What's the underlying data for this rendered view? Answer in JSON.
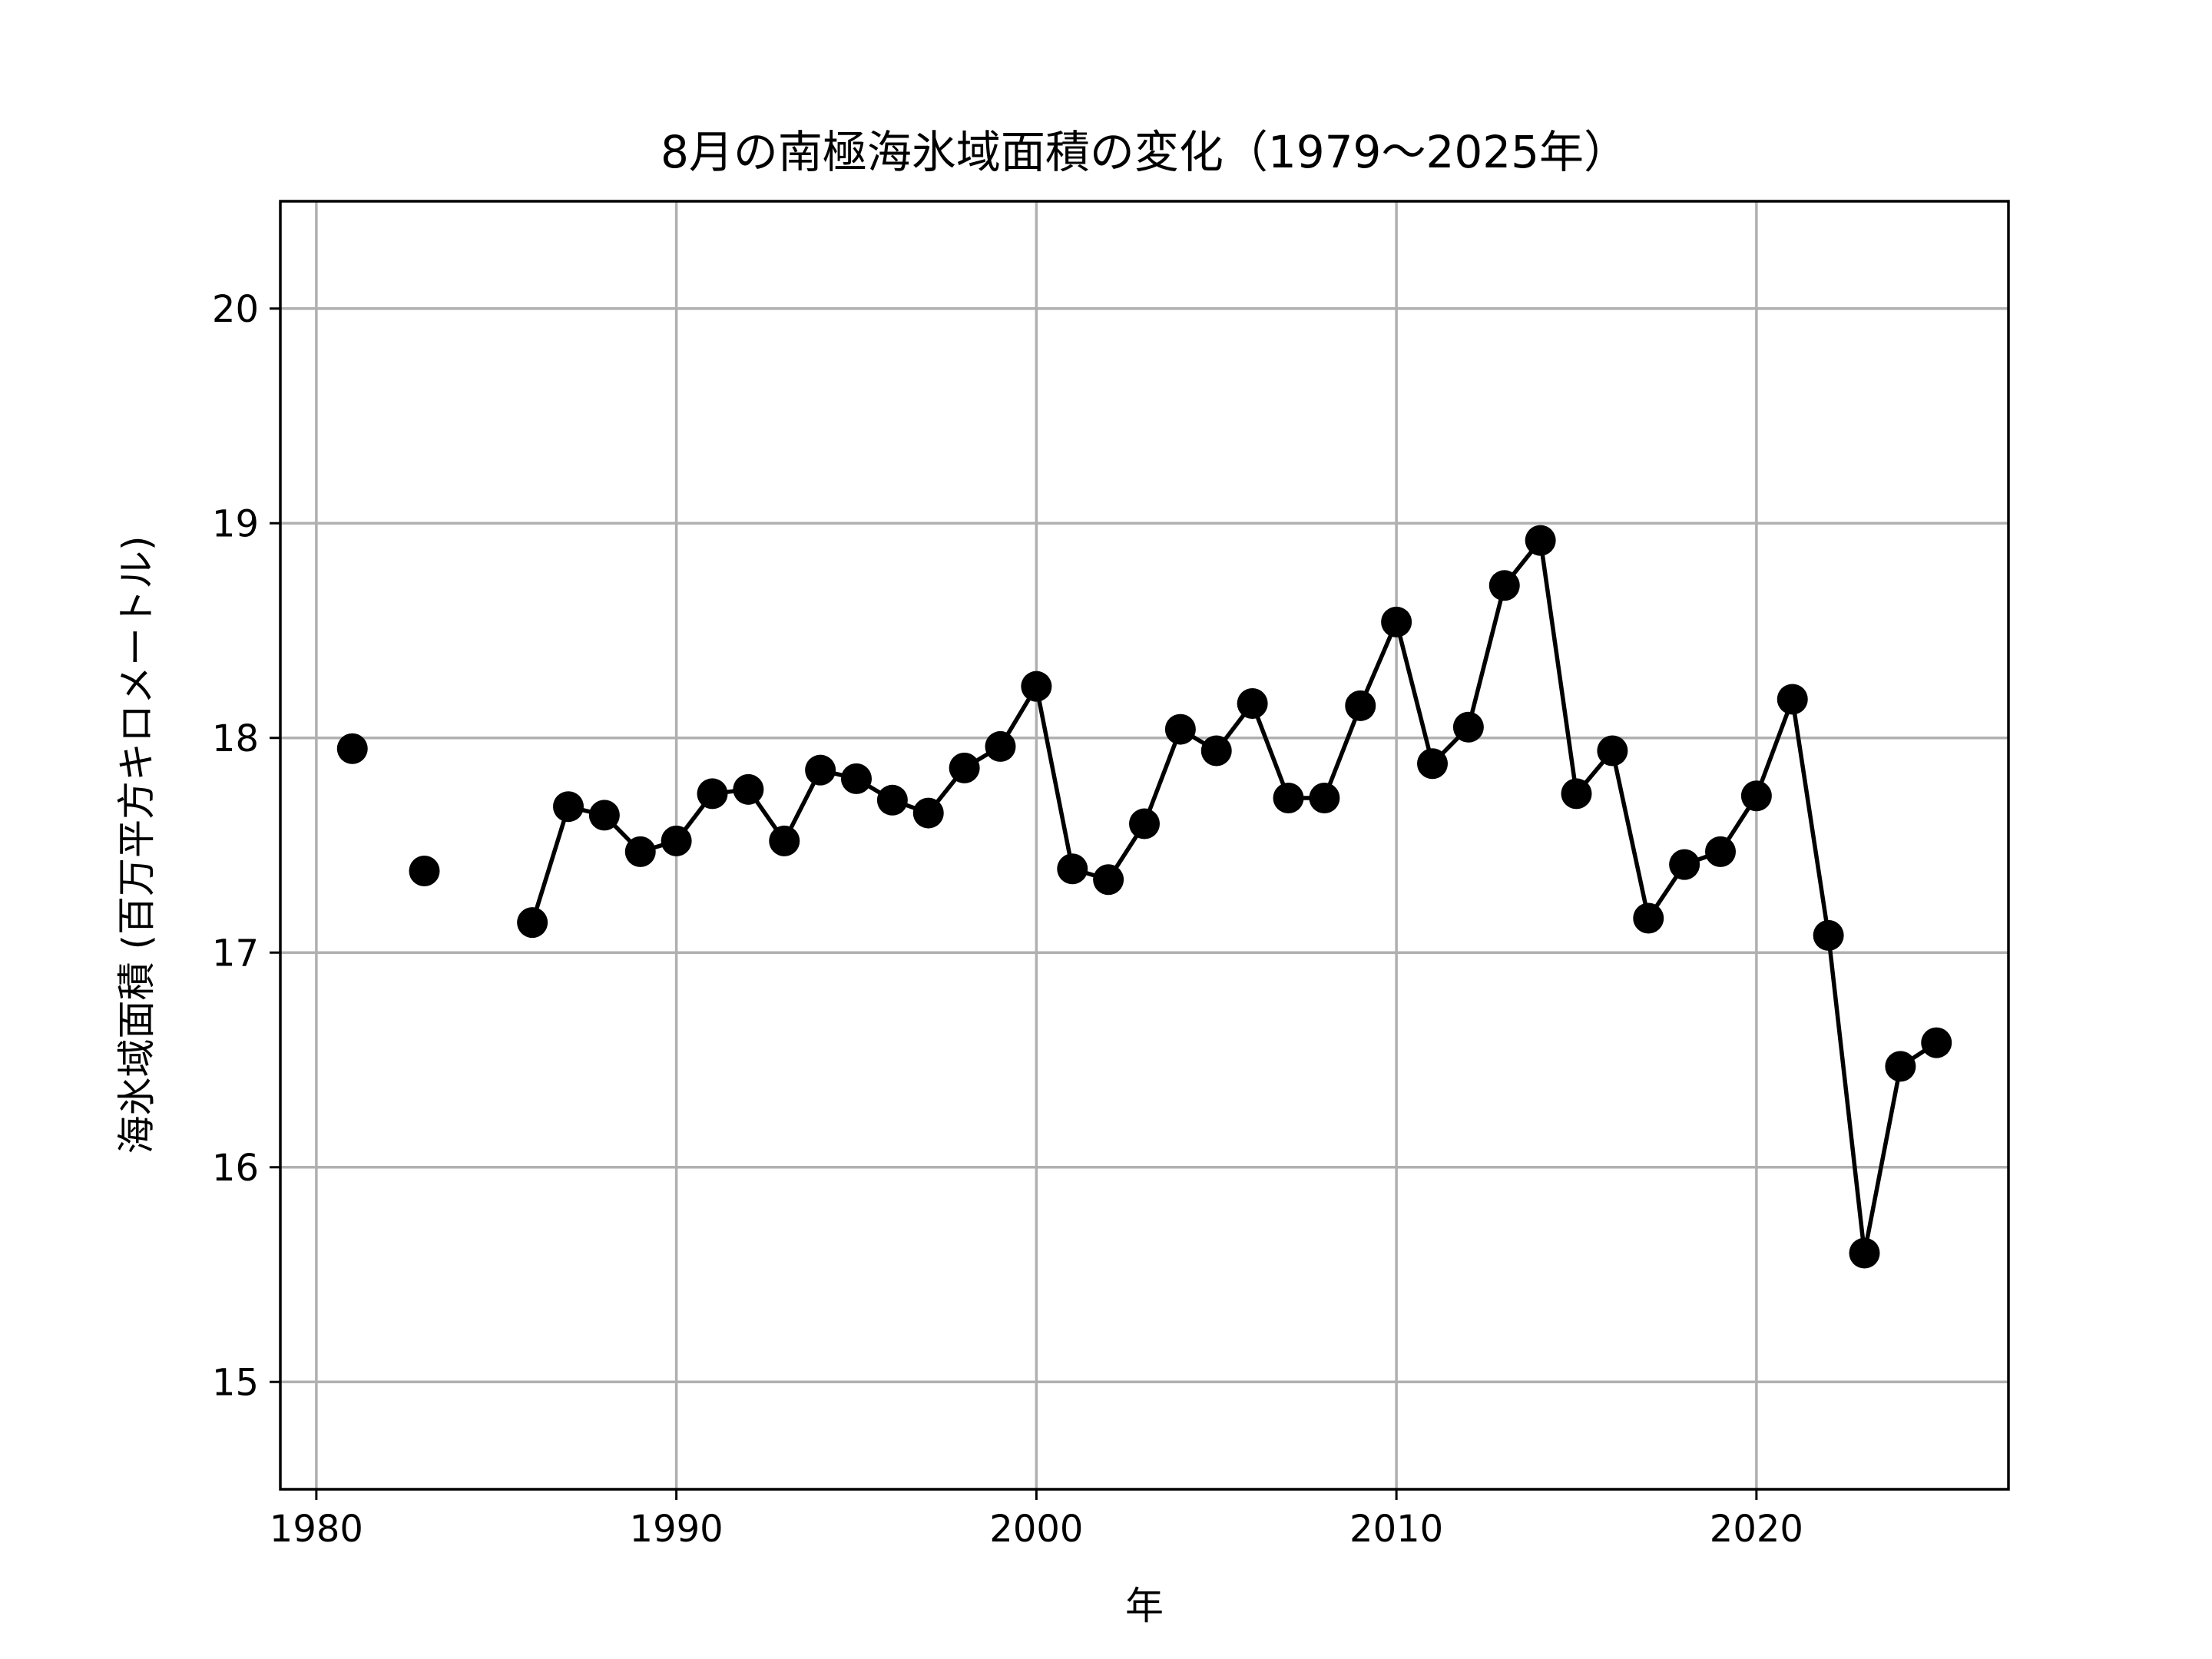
{
  "chart_data": {
    "type": "line",
    "title": "8月の南極海氷域面積の変化（1979〜2025年）",
    "xlabel": "年",
    "ylabel": "海氷域面積 (百万平方キロメートル)",
    "xlim": [
      1979,
      2027
    ],
    "ylim": [
      14.5,
      20.5
    ],
    "xticks": [
      1980,
      1990,
      2000,
      2010,
      2020
    ],
    "yticks": [
      15,
      16,
      17,
      18,
      19,
      20
    ],
    "grid": true,
    "color": "#000000",
    "series": [
      {
        "points": [
          [
            1981,
            17.95
          ],
          [
            1983,
            17.38
          ],
          [
            1986,
            17.14
          ],
          [
            1987,
            17.68
          ],
          [
            1988,
            17.64
          ],
          [
            1989,
            17.47
          ],
          [
            1990,
            17.52
          ],
          [
            1991,
            17.74
          ],
          [
            1992,
            17.76
          ],
          [
            1993,
            17.52
          ],
          [
            1994,
            17.85
          ],
          [
            1995,
            17.81
          ],
          [
            1996,
            17.71
          ],
          [
            1997,
            17.65
          ],
          [
            1998,
            17.86
          ],
          [
            1999,
            17.96
          ],
          [
            2000,
            18.24
          ],
          [
            2001,
            17.39
          ],
          [
            2002,
            17.34
          ],
          [
            2003,
            17.6
          ],
          [
            2004,
            18.04
          ],
          [
            2005,
            17.94
          ],
          [
            2006,
            18.16
          ],
          [
            2007,
            17.72
          ],
          [
            2008,
            17.72
          ],
          [
            2009,
            18.15
          ],
          [
            2010,
            18.54
          ],
          [
            2011,
            17.88
          ],
          [
            2012,
            18.05
          ],
          [
            2013,
            18.71
          ],
          [
            2014,
            18.92
          ],
          [
            2015,
            17.74
          ],
          [
            2016,
            17.94
          ],
          [
            2017,
            17.16
          ],
          [
            2018,
            17.41
          ],
          [
            2019,
            17.47
          ],
          [
            2020,
            17.73
          ],
          [
            2021,
            18.18
          ],
          [
            2022,
            17.08
          ],
          [
            2023,
            15.6
          ],
          [
            2024,
            16.47
          ],
          [
            2025,
            16.58
          ]
        ]
      }
    ]
  }
}
